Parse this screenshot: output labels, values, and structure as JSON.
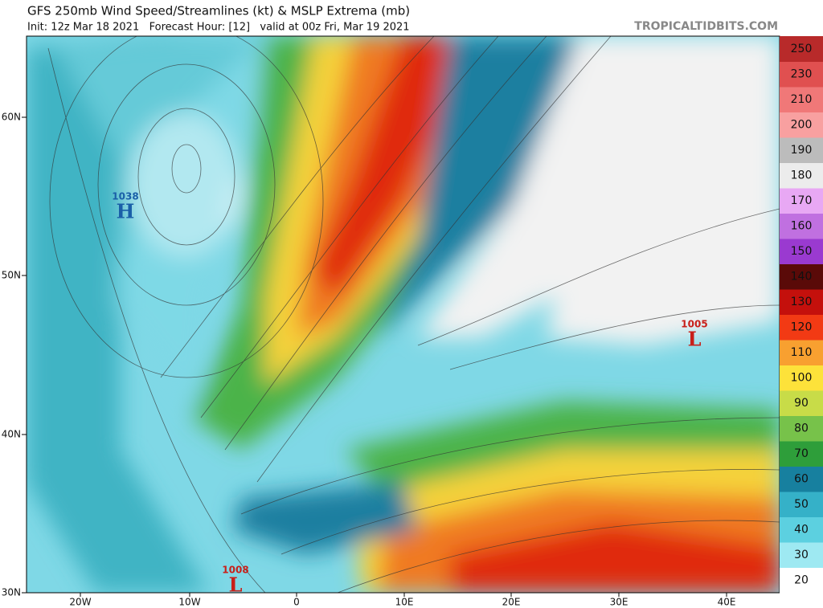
{
  "header": {
    "title": "GFS 250mb Wind Speed/Streamlines (kt) & MSLP Extrema (mb)",
    "subtitle": "Init: 12z Mar 18 2021   Forecast Hour: [12]   valid at 00z Fri, Mar 19 2021",
    "brand": "TROPICALTIDBITS.COM"
  },
  "map": {
    "latitude_labels": [
      "60N",
      "50N",
      "40N",
      "30N"
    ],
    "longitude_labels": [
      "20W",
      "10W",
      "0",
      "10E",
      "20E",
      "30E",
      "40E"
    ],
    "pressure_centers": [
      {
        "value": "1038",
        "symbol": "H"
      },
      {
        "value": "1008",
        "symbol": "L"
      },
      {
        "value": "1005",
        "symbol": "L"
      }
    ]
  },
  "colorbar": {
    "labels": [
      "20",
      "30",
      "40",
      "50",
      "60",
      "70",
      "80",
      "90",
      "100",
      "110",
      "120",
      "130",
      "140",
      "150",
      "160",
      "170",
      "180",
      "190",
      "200",
      "210",
      "230",
      "250"
    ]
  }
}
